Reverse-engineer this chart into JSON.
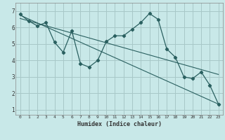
{
  "title": "",
  "xlabel": "Humidex (Indice chaleur)",
  "ylabel": "",
  "bg_color": "#c8e8e8",
  "grid_color": "#a8c8c8",
  "line_color": "#2a6060",
  "xlim": [
    -0.5,
    23.5
  ],
  "ylim": [
    0.7,
    7.5
  ],
  "xticks": [
    0,
    1,
    2,
    3,
    4,
    5,
    6,
    7,
    8,
    9,
    10,
    11,
    12,
    13,
    14,
    15,
    16,
    17,
    18,
    19,
    20,
    21,
    22,
    23
  ],
  "yticks": [
    1,
    2,
    3,
    4,
    5,
    6,
    7
  ],
  "line1_x": [
    0,
    1,
    2,
    3,
    4,
    5,
    6,
    7,
    8,
    9,
    10,
    11,
    12,
    13,
    14,
    15,
    16,
    17,
    18,
    19,
    20,
    21,
    22,
    23
  ],
  "line1_y": [
    6.8,
    6.4,
    6.1,
    6.3,
    5.1,
    4.5,
    5.8,
    3.8,
    3.6,
    4.0,
    5.15,
    5.5,
    5.5,
    5.9,
    6.3,
    6.85,
    6.5,
    4.7,
    4.2,
    3.0,
    2.9,
    3.3,
    2.5,
    1.35
  ],
  "line2_x": [
    0,
    23
  ],
  "line2_y": [
    6.75,
    1.35
  ],
  "line3_x": [
    0,
    23
  ],
  "line3_y": [
    6.55,
    3.15
  ]
}
